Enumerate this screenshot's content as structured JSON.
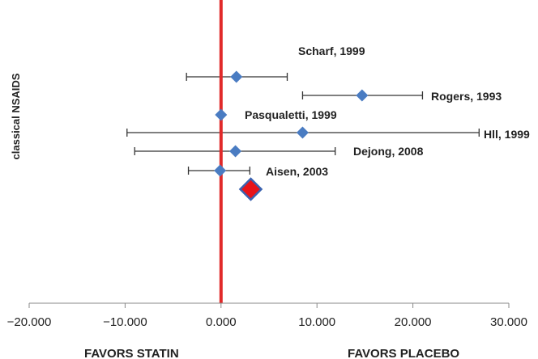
{
  "chart_data": {
    "type": "forest",
    "group_label": "classical NSAIDS",
    "xlim": [
      -20,
      30
    ],
    "ticks": [
      -20,
      -10,
      0,
      10,
      20,
      30
    ],
    "tick_labels": [
      "−20.000",
      "−10.000",
      "0.000",
      "10.000",
      "20.000",
      "30.000"
    ],
    "reference_line": 0,
    "favors_left": "FAVORS STATIN",
    "favors_right": "FAVORS PLACEBO",
    "studies": [
      {
        "label": "Scharf, 1999",
        "estimate": 1.6,
        "ci": [
          -3.6,
          6.9
        ]
      },
      {
        "label": "Rogers, 1993",
        "estimate": 14.7,
        "ci": [
          8.5,
          21.0
        ]
      },
      {
        "label": "Pasqualetti, 1999",
        "estimate": 0.0,
        "ci": [
          0.0,
          0.0
        ]
      },
      {
        "label": "Hll, 1999",
        "estimate": 8.5,
        "ci": [
          -9.8,
          26.9
        ]
      },
      {
        "label": "Dejong, 2008",
        "estimate": 1.5,
        "ci": [
          -9.0,
          11.9
        ]
      },
      {
        "label": "Aisen, 2003",
        "estimate": -0.1,
        "ci": [
          -3.4,
          3.0
        ]
      }
    ],
    "pooled": {
      "estimate": 3.1
    },
    "colors": {
      "study_marker": "#4a7cc2",
      "pooled_marker": "#e8141a",
      "pooled_border": "#3b62b0",
      "reference_line": "#e12a2a",
      "whisker": "#333333",
      "axis": "#888888"
    }
  }
}
